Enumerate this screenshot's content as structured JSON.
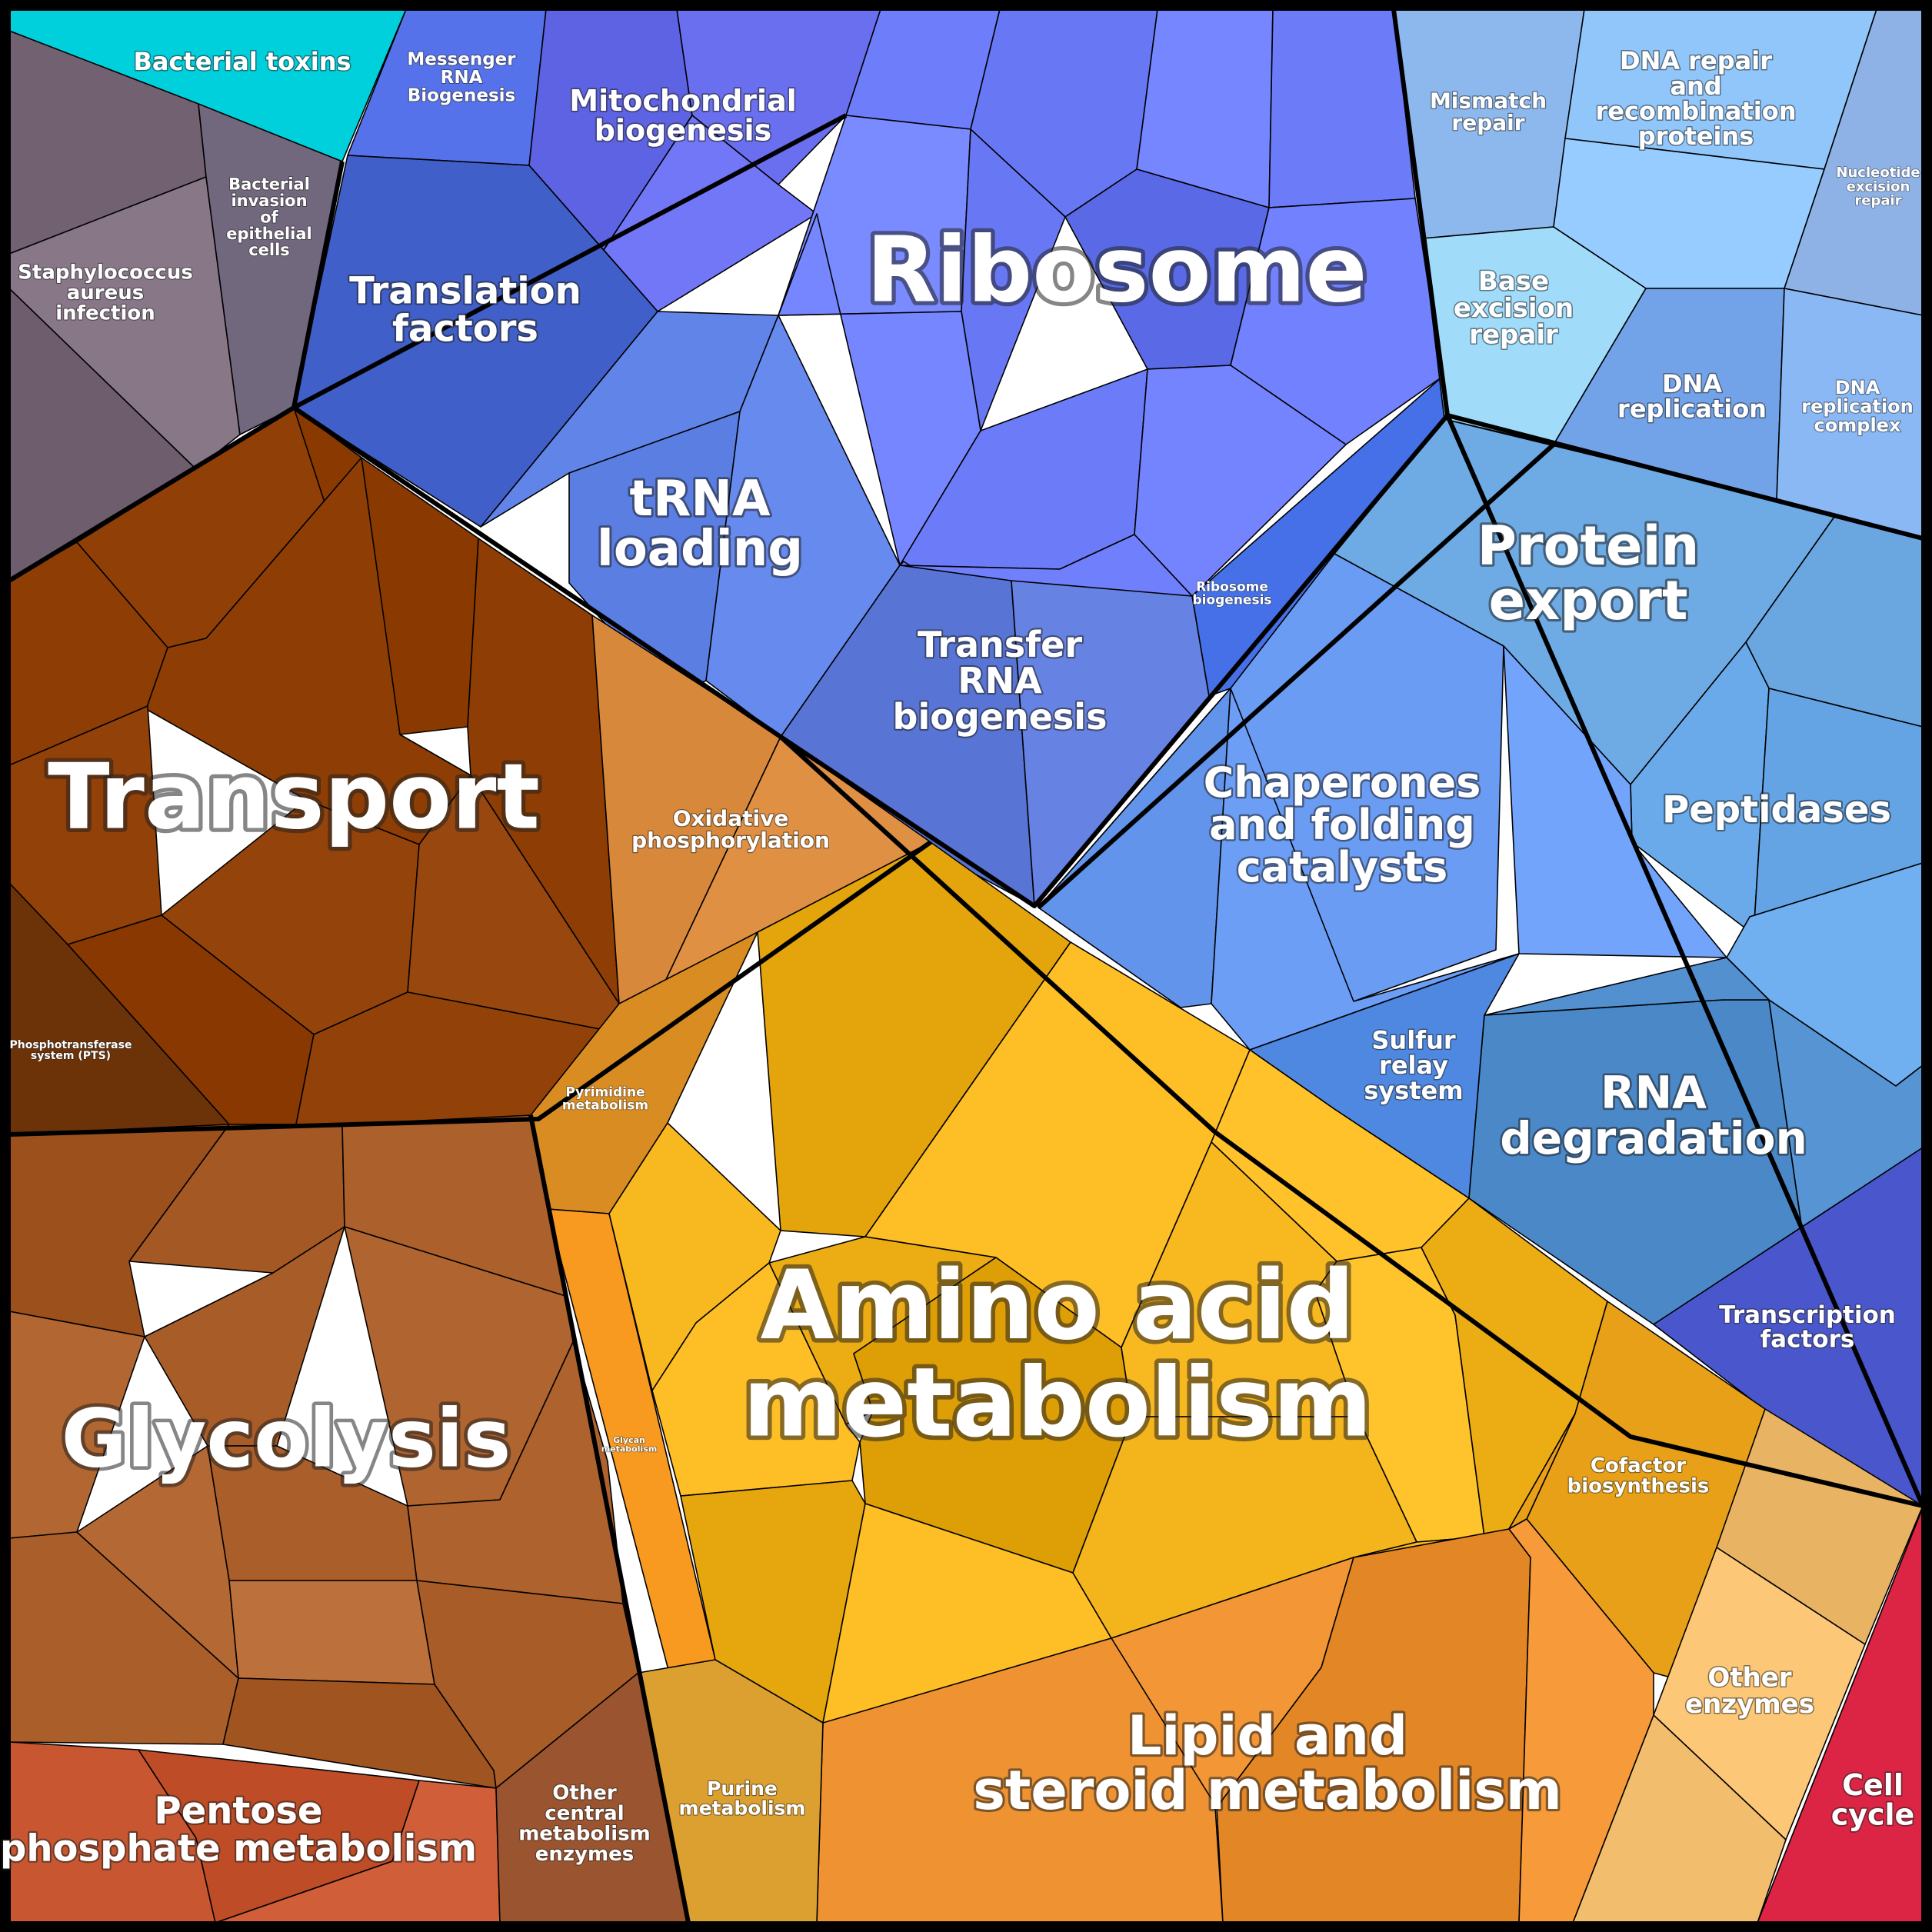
{
  "diagram": {
    "type": "voronoi-treemap",
    "groups": [
      {
        "id": "bacterial-toxins",
        "label": "Bacterial toxins",
        "color": "#00d0dc"
      },
      {
        "id": "staph-aureus",
        "label": "Staphylococcus aureus infection",
        "color": "#756575"
      },
      {
        "id": "bacterial-invasion",
        "label": "Bacterial invasion of epithelial cells",
        "color": "#72687e"
      },
      {
        "id": "messenger-rna",
        "label": "Messenger RNA Biogenesis",
        "color": "#5672ea"
      },
      {
        "id": "mitochondrial",
        "label": "Mitochondrial biogenesis",
        "color": "#5d63e3"
      },
      {
        "id": "ribosome",
        "label": "Ribosome",
        "color": "#6878f4"
      },
      {
        "id": "translation-factors",
        "label": "Translation factors",
        "color": "#415fc8"
      },
      {
        "id": "trna-loading",
        "label": "tRNA loading",
        "color": "#6184e8"
      },
      {
        "id": "transfer-rna",
        "label": "Transfer RNA biogenesis",
        "color": "#5c78d8"
      },
      {
        "id": "ribosome-biogenesis",
        "label": "Ribosome biogenesis",
        "color": "#4570e8"
      },
      {
        "id": "mismatch-repair",
        "label": "Mismatch repair",
        "color": "#8db8ee"
      },
      {
        "id": "dna-repair",
        "label": "DNA repair and recombination proteins",
        "color": "#90c6fa"
      },
      {
        "id": "nucleotide-excision",
        "label": "Nucleotide excision repair",
        "color": "#8fb2e6"
      },
      {
        "id": "base-excision",
        "label": "Base excision repair",
        "color": "#a0dcfa"
      },
      {
        "id": "dna-replication",
        "label": "DNA replication",
        "color": "#72a2e8"
      },
      {
        "id": "dna-replication-complex",
        "label": "DNA replication complex",
        "color": "#8ab8f4"
      },
      {
        "id": "protein-export",
        "label": "Protein export",
        "color": "#6eaae4"
      },
      {
        "id": "chaperones",
        "label": "Chaperones and folding catalysts",
        "color": "#6a9cf4"
      },
      {
        "id": "peptidases",
        "label": "Peptidases",
        "color": "#64a4e4"
      },
      {
        "id": "sulfur-relay",
        "label": "Sulfur relay system",
        "color": "#4e88e0"
      },
      {
        "id": "rna-degradation",
        "label": "RNA degradation",
        "color": "#4a88c8"
      },
      {
        "id": "transcription-factors",
        "label": "Transcription factors",
        "color": "#4a56cc"
      },
      {
        "id": "transport",
        "label": "Transport",
        "color": "#8e3e04"
      },
      {
        "id": "pts",
        "label": "Phosphotransferase system (PTS)",
        "color": "#6c3208"
      },
      {
        "id": "oxidative",
        "label": "Oxidative phosphorylation",
        "color": "#d8883a"
      },
      {
        "id": "pyrimidine",
        "label": "Pyrimidine metabolism",
        "color": "#d88c22"
      },
      {
        "id": "amino-acid",
        "label": "Amino acid metabolism",
        "color": "#f0b018"
      },
      {
        "id": "glycan",
        "label": "Glycan metabolism",
        "color": "#f89a20"
      },
      {
        "id": "glycolysis",
        "label": "Glycolysis",
        "color": "#a85c28"
      },
      {
        "id": "pentose-phosphate",
        "label": "Pentose phosphate metabolism",
        "color": "#c85630"
      },
      {
        "id": "other-central",
        "label": "Other central metabolism enzymes",
        "color": "#9a5430"
      },
      {
        "id": "purine",
        "label": "Purine metabolism",
        "color": "#dca030"
      },
      {
        "id": "lipid-steroid",
        "label": "Lipid and steroid metabolism",
        "color": "#ec9030"
      },
      {
        "id": "cofactor",
        "label": "Cofactor biosynthesis",
        "color": "#e8a018"
      },
      {
        "id": "other-enzymes",
        "label": "Other enzymes",
        "color": "#fcc878"
      },
      {
        "id": "cell-cycle",
        "label": "Cell cycle",
        "color": "#dc2444"
      }
    ]
  }
}
